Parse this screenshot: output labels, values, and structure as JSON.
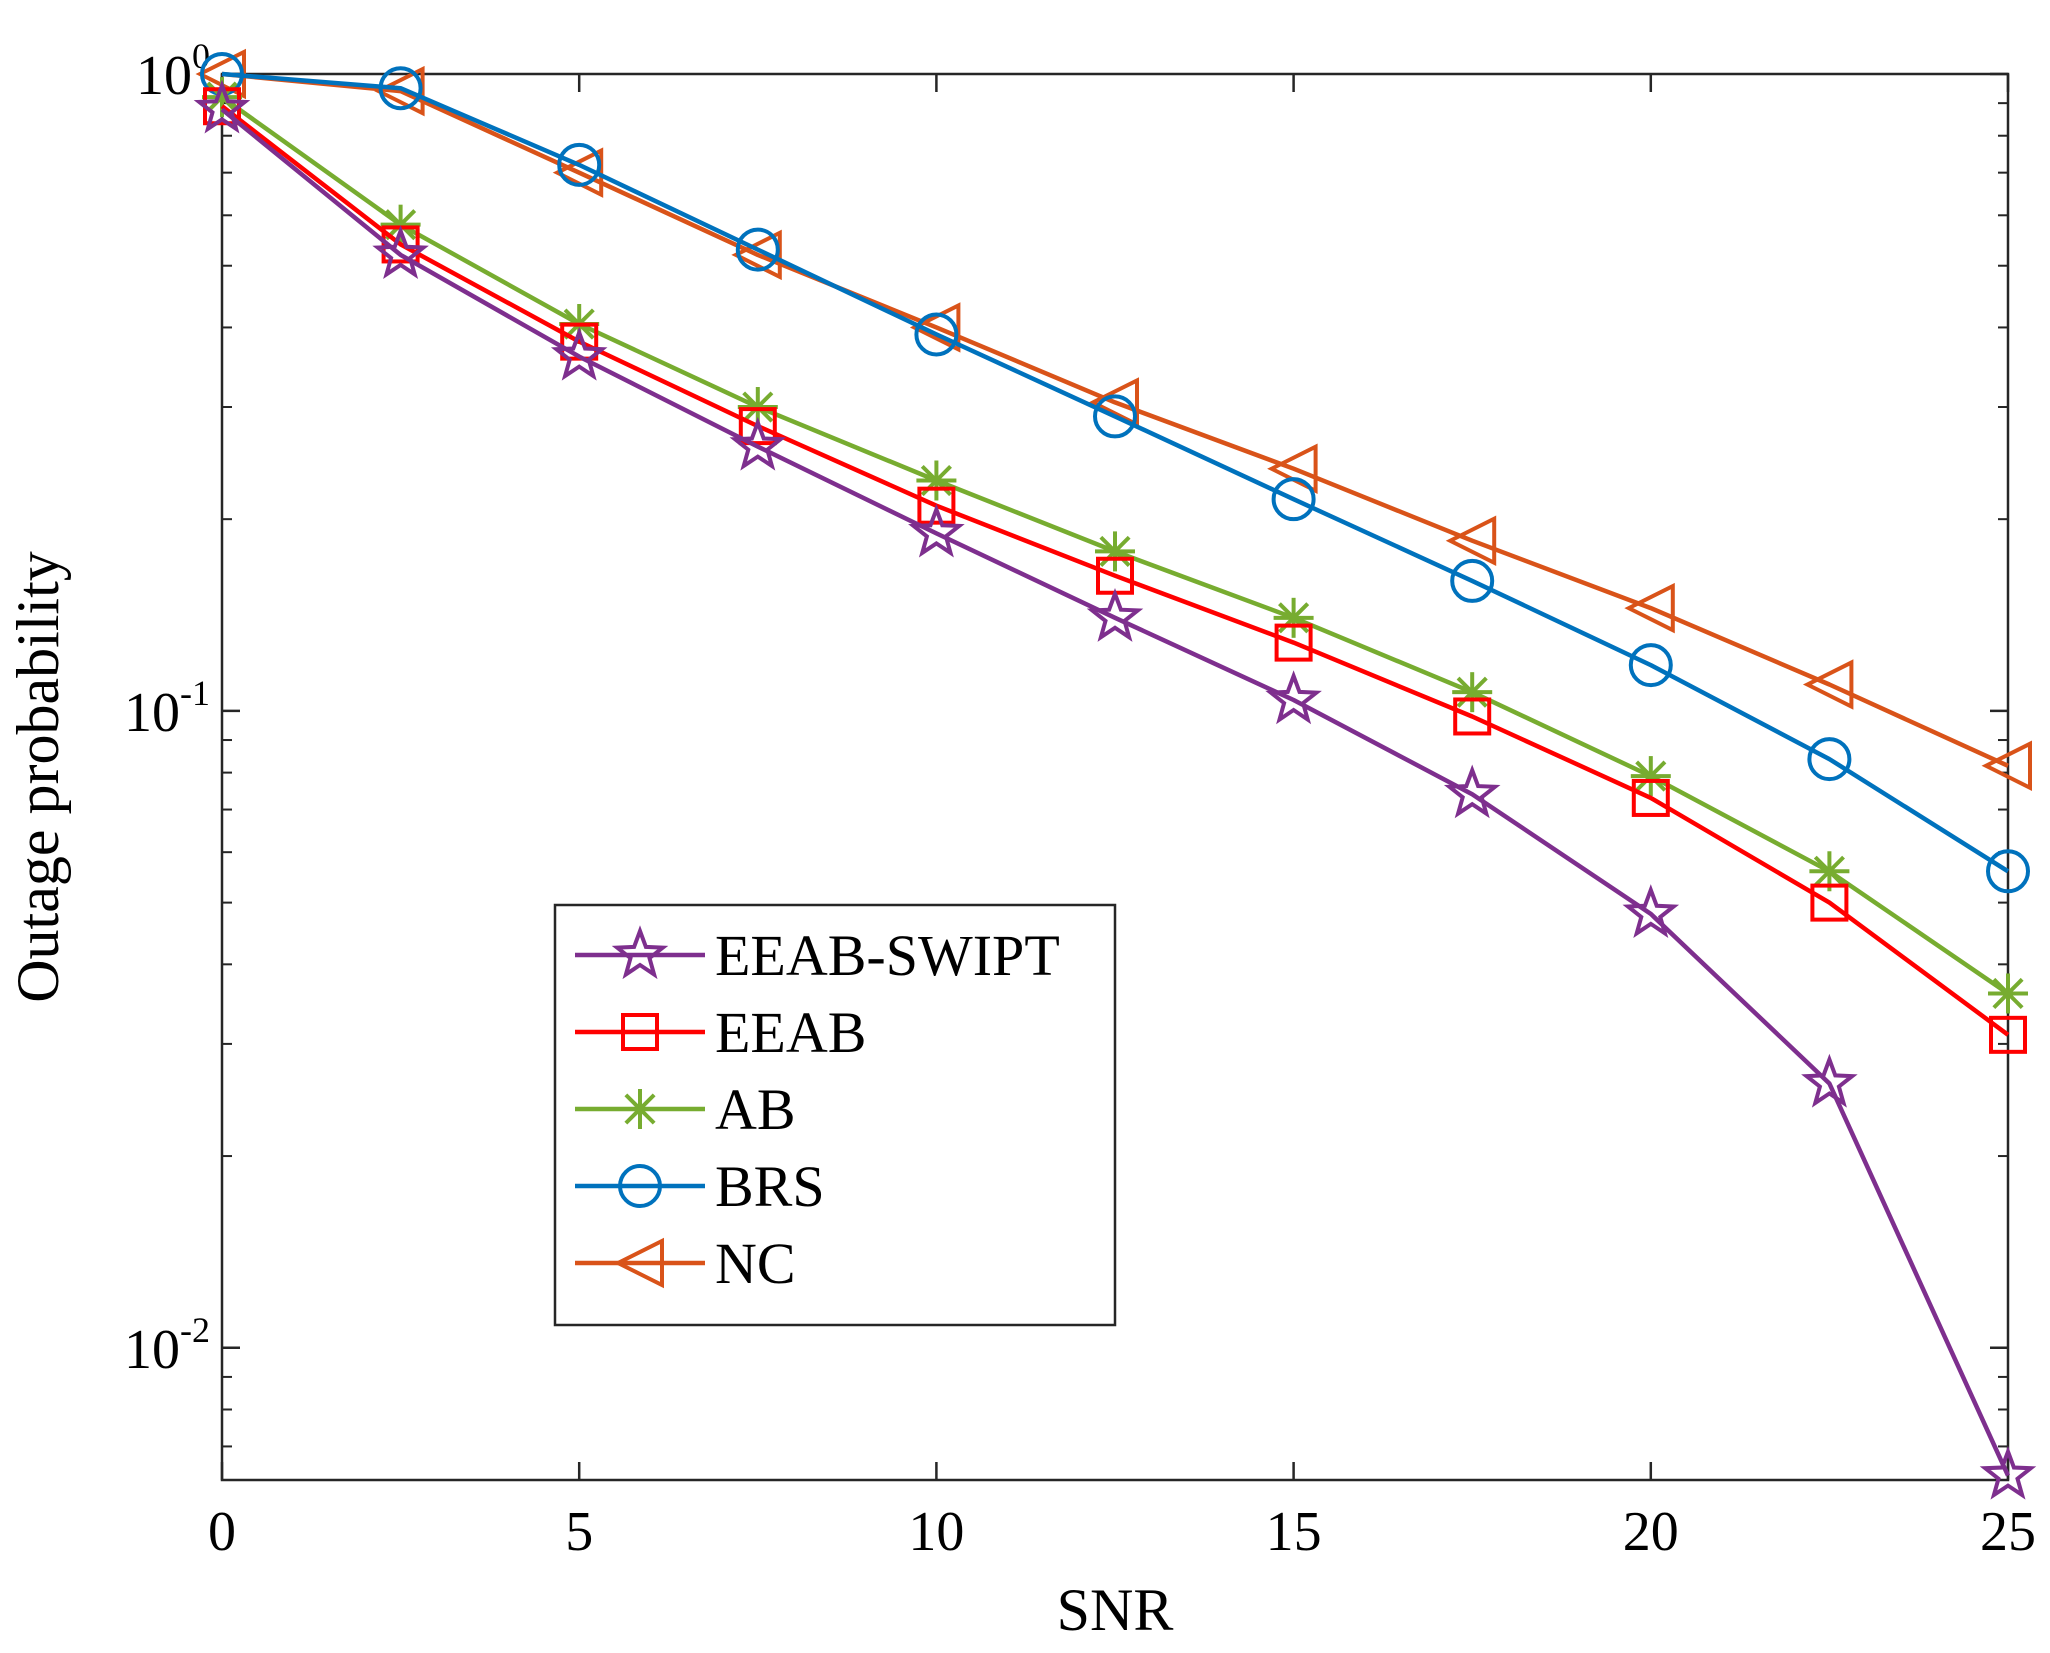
{
  "chart_data": {
    "type": "line",
    "title": "",
    "xlabel": "SNR",
    "ylabel": "Outage probability",
    "xscale": "linear",
    "yscale": "log",
    "xlim": [
      0,
      25
    ],
    "ylim": [
      0.0062,
      1.0
    ],
    "xticks": [
      0,
      5,
      10,
      15,
      20,
      25
    ],
    "yticks": [
      {
        "value": 1,
        "base": "10",
        "exp": "0"
      },
      {
        "value": 0.1,
        "base": "10",
        "exp": "-1"
      },
      {
        "value": 0.01,
        "base": "10",
        "exp": "-2"
      }
    ],
    "grid": false,
    "legend_position": "lower-left",
    "x": [
      0,
      2.5,
      5,
      7.5,
      10,
      12.5,
      15,
      17.5,
      20,
      22.5,
      25
    ],
    "series": [
      {
        "name": "EEAB-SWIPT",
        "color": "#7E2F8E",
        "marker": "star",
        "values": [
          0.88,
          0.52,
          0.36,
          0.26,
          0.19,
          0.14,
          0.104,
          0.074,
          0.048,
          0.026,
          0.0063
        ]
      },
      {
        "name": "EEAB",
        "color": "#FF0000",
        "marker": "square",
        "values": [
          0.89,
          0.54,
          0.38,
          0.28,
          0.21,
          0.163,
          0.128,
          0.098,
          0.073,
          0.05,
          0.031
        ]
      },
      {
        "name": "AB",
        "color": "#77AC30",
        "marker": "asterisk",
        "values": [
          0.92,
          0.58,
          0.405,
          0.3,
          0.23,
          0.178,
          0.14,
          0.107,
          0.079,
          0.056,
          0.036
        ]
      },
      {
        "name": "BRS",
        "color": "#0072BD",
        "marker": "circle",
        "values": [
          1.0,
          0.95,
          0.72,
          0.53,
          0.39,
          0.29,
          0.215,
          0.16,
          0.118,
          0.084,
          0.056
        ]
      },
      {
        "name": "NC",
        "color": "#D95319",
        "marker": "triangle-left",
        "values": [
          1.0,
          0.94,
          0.7,
          0.52,
          0.4,
          0.305,
          0.24,
          0.185,
          0.145,
          0.11,
          0.082
        ]
      }
    ]
  }
}
